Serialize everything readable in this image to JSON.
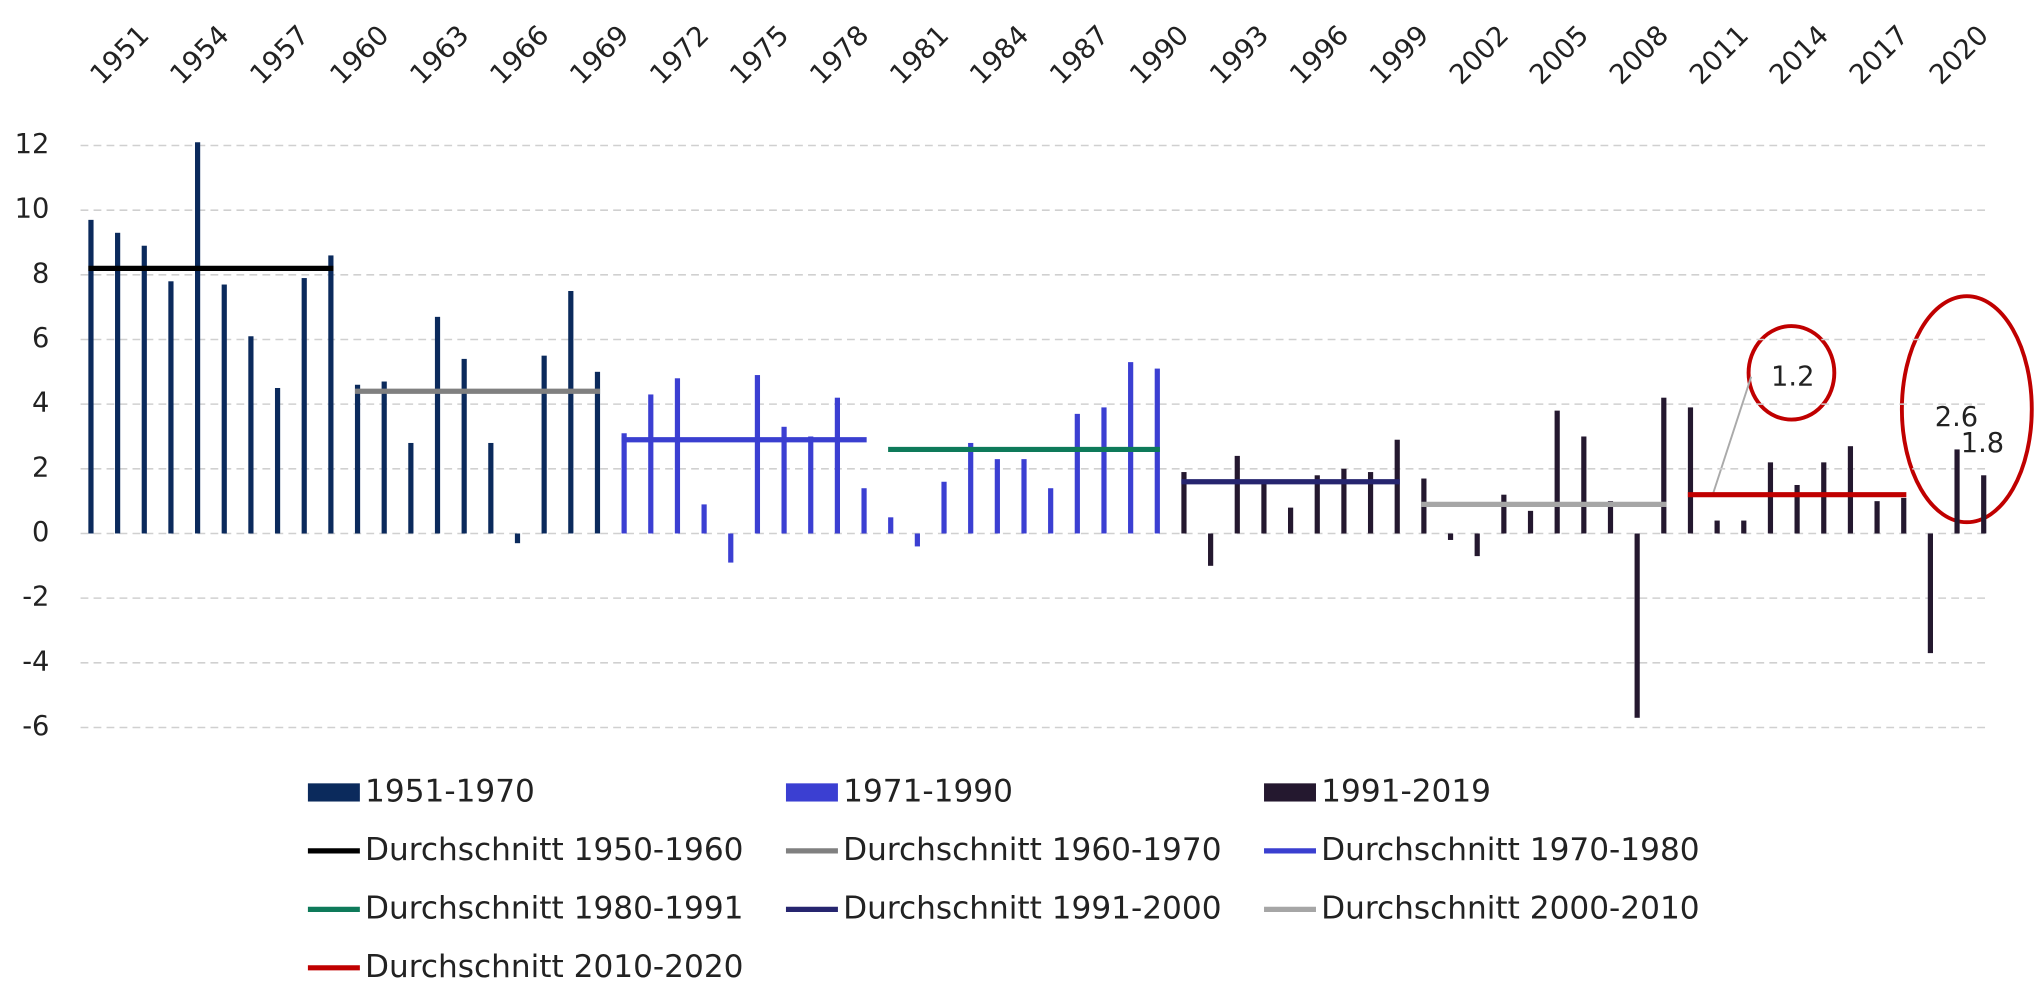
{
  "chart_data": {
    "type": "bar",
    "categories": [
      "1951",
      null,
      null,
      "1954",
      null,
      null,
      "1957",
      null,
      null,
      "1960",
      null,
      null,
      "1963",
      null,
      null,
      "1966",
      null,
      null,
      "1969",
      null,
      null,
      "1972",
      null,
      null,
      "1975",
      null,
      null,
      "1978",
      null,
      null,
      "1981",
      null,
      null,
      "1984",
      null,
      null,
      "1987",
      null,
      null,
      "1990",
      null,
      null,
      "1993",
      null,
      null,
      "1996",
      null,
      null,
      "1999",
      null,
      null,
      "2002",
      null,
      null,
      "2005",
      null,
      null,
      "2008",
      null,
      null,
      "2011",
      null,
      null,
      "2014",
      null,
      null,
      "2017",
      null,
      null,
      "2020",
      null,
      null
    ],
    "ylim": [
      -6,
      12
    ],
    "yticks": [
      -6,
      -4,
      -2,
      0,
      2,
      4,
      6,
      8,
      10,
      12
    ],
    "grid": true,
    "series": [
      {
        "name": "1951-1970",
        "color": "#0b2a5c",
        "values": [
          9.7,
          9.3,
          8.9,
          7.8,
          12.1,
          7.7,
          6.1,
          4.5,
          7.9,
          8.6,
          4.6,
          4.7,
          2.8,
          6.7,
          5.4,
          2.8,
          -0.3,
          5.5,
          7.5,
          5.0,
          null,
          null,
          null,
          null,
          null,
          null,
          null,
          null,
          null,
          null,
          null,
          null,
          null,
          null,
          null,
          null,
          null,
          null,
          null,
          null,
          null,
          null,
          null,
          null,
          null,
          null,
          null,
          null,
          null,
          null,
          null,
          null,
          null,
          null,
          null,
          null,
          null,
          null,
          null,
          null,
          null,
          null,
          null,
          null,
          null,
          null,
          null,
          null,
          null,
          null,
          null,
          null
        ]
      },
      {
        "name": "1971-1990",
        "color": "#3b3fd2",
        "values": [
          null,
          null,
          null,
          null,
          null,
          null,
          null,
          null,
          null,
          null,
          null,
          null,
          null,
          null,
          null,
          null,
          null,
          null,
          null,
          null,
          3.1,
          4.3,
          4.8,
          0.9,
          -0.9,
          4.9,
          3.3,
          3.0,
          4.2,
          1.4,
          0.5,
          -0.4,
          1.6,
          2.8,
          2.3,
          2.3,
          1.4,
          3.7,
          3.9,
          5.3,
          5.1,
          null,
          null,
          null,
          null,
          null,
          null,
          null,
          null,
          null,
          null,
          null,
          null,
          null,
          null,
          null,
          null,
          null,
          null,
          null,
          null,
          null,
          null,
          null,
          null,
          null,
          null,
          null,
          null,
          null,
          null,
          null
        ]
      },
      {
        "name": "1991-2019",
        "color": "#24182f",
        "values": [
          null,
          null,
          null,
          null,
          null,
          null,
          null,
          null,
          null,
          null,
          null,
          null,
          null,
          null,
          null,
          null,
          null,
          null,
          null,
          null,
          null,
          null,
          null,
          null,
          null,
          null,
          null,
          null,
          null,
          null,
          null,
          null,
          null,
          null,
          null,
          null,
          null,
          null,
          null,
          null,
          null,
          1.9,
          -1.0,
          2.4,
          1.6,
          0.8,
          1.8,
          2.0,
          1.9,
          2.9,
          1.7,
          -0.2,
          -0.7,
          1.2,
          0.7,
          3.8,
          3.0,
          1.0,
          -5.7,
          4.2,
          3.9,
          0.4,
          0.4,
          2.2,
          1.5,
          2.2,
          2.7,
          1.0,
          1.1,
          -3.7,
          2.6,
          1.8
        ]
      },
      {
        "name": "Durchschnitt 1950-1960",
        "type": "line",
        "color": "#000000",
        "values": [
          8.2,
          8.2,
          8.2,
          8.2,
          8.2,
          8.2,
          8.2,
          8.2,
          8.2,
          8.2,
          null,
          null,
          null,
          null,
          null,
          null,
          null,
          null,
          null,
          null,
          null,
          null,
          null,
          null,
          null,
          null,
          null,
          null,
          null,
          null,
          null,
          null,
          null,
          null,
          null,
          null,
          null,
          null,
          null,
          null,
          null,
          null,
          null,
          null,
          null,
          null,
          null,
          null,
          null,
          null,
          null,
          null,
          null,
          null,
          null,
          null,
          null,
          null,
          null,
          null,
          null,
          null,
          null,
          null,
          null,
          null,
          null,
          null,
          null,
          null,
          null,
          null
        ]
      },
      {
        "name": "Durchschnitt 1960-1970",
        "type": "line",
        "color": "#808080",
        "values": [
          null,
          null,
          null,
          null,
          null,
          null,
          null,
          null,
          null,
          null,
          4.4,
          4.4,
          4.4,
          4.4,
          4.4,
          4.4,
          4.4,
          4.4,
          4.4,
          4.4,
          null,
          null,
          null,
          null,
          null,
          null,
          null,
          null,
          null,
          null,
          null,
          null,
          null,
          null,
          null,
          null,
          null,
          null,
          null,
          null,
          null,
          null,
          null,
          null,
          null,
          null,
          null,
          null,
          null,
          null,
          null,
          null,
          null,
          null,
          null,
          null,
          null,
          null,
          null,
          null,
          null,
          null,
          null,
          null,
          null,
          null,
          null,
          null,
          null,
          null,
          null,
          null
        ]
      },
      {
        "name": "Durchschnitt 1970-1980",
        "type": "line",
        "color": "#3a3fd0",
        "values": [
          null,
          null,
          null,
          null,
          null,
          null,
          null,
          null,
          null,
          null,
          null,
          null,
          null,
          null,
          null,
          null,
          null,
          null,
          null,
          null,
          2.9,
          2.9,
          2.9,
          2.9,
          2.9,
          2.9,
          2.9,
          2.9,
          2.9,
          2.9,
          null,
          null,
          null,
          null,
          null,
          null,
          null,
          null,
          null,
          null,
          null,
          null,
          null,
          null,
          null,
          null,
          null,
          null,
          null,
          null,
          null,
          null,
          null,
          null,
          null,
          null,
          null,
          null,
          null,
          null,
          null,
          null,
          null,
          null,
          null,
          null,
          null,
          null,
          null,
          null,
          null,
          null
        ]
      },
      {
        "name": "Durchschnitt 1980-1991",
        "type": "line",
        "color": "#0e7a5a",
        "values": [
          null,
          null,
          null,
          null,
          null,
          null,
          null,
          null,
          null,
          null,
          null,
          null,
          null,
          null,
          null,
          null,
          null,
          null,
          null,
          null,
          null,
          null,
          null,
          null,
          null,
          null,
          null,
          null,
          null,
          null,
          2.6,
          2.6,
          2.6,
          2.6,
          2.6,
          2.6,
          2.6,
          2.6,
          2.6,
          2.6,
          2.6,
          null,
          null,
          null,
          null,
          null,
          null,
          null,
          null,
          null,
          null,
          null,
          null,
          null,
          null,
          null,
          null,
          null,
          null,
          null,
          null,
          null,
          null,
          null,
          null,
          null,
          null,
          null,
          null,
          null,
          null,
          null
        ]
      },
      {
        "name": "Durchschnitt 1991-2000",
        "type": "line",
        "color": "#26256f",
        "values": [
          null,
          null,
          null,
          null,
          null,
          null,
          null,
          null,
          null,
          null,
          null,
          null,
          null,
          null,
          null,
          null,
          null,
          null,
          null,
          null,
          null,
          null,
          null,
          null,
          null,
          null,
          null,
          null,
          null,
          null,
          null,
          null,
          null,
          null,
          null,
          null,
          null,
          null,
          null,
          null,
          null,
          1.6,
          1.6,
          1.6,
          1.6,
          1.6,
          1.6,
          1.6,
          1.6,
          1.6,
          null,
          null,
          null,
          null,
          null,
          null,
          null,
          null,
          null,
          null,
          null,
          null,
          null,
          null,
          null,
          null,
          null,
          null,
          null,
          null,
          null,
          null
        ]
      },
      {
        "name": "Durchschnitt 2000-2010",
        "type": "line",
        "color": "#a6a6a6",
        "values": [
          null,
          null,
          null,
          null,
          null,
          null,
          null,
          null,
          null,
          null,
          null,
          null,
          null,
          null,
          null,
          null,
          null,
          null,
          null,
          null,
          null,
          null,
          null,
          null,
          null,
          null,
          null,
          null,
          null,
          null,
          null,
          null,
          null,
          null,
          null,
          null,
          null,
          null,
          null,
          null,
          null,
          null,
          null,
          null,
          null,
          null,
          null,
          null,
          null,
          null,
          0.9,
          0.9,
          0.9,
          0.9,
          0.9,
          0.9,
          0.9,
          0.9,
          0.9,
          0.9,
          null,
          null,
          null,
          null,
          null,
          null,
          null,
          null,
          null,
          null,
          null,
          null
        ]
      },
      {
        "name": "Durchschnitt 2010-2020",
        "type": "line",
        "color": "#c00000",
        "values": [
          null,
          null,
          null,
          null,
          null,
          null,
          null,
          null,
          null,
          null,
          null,
          null,
          null,
          null,
          null,
          null,
          null,
          null,
          null,
          null,
          null,
          null,
          null,
          null,
          null,
          null,
          null,
          null,
          null,
          null,
          null,
          null,
          null,
          null,
          null,
          null,
          null,
          null,
          null,
          null,
          null,
          null,
          null,
          null,
          null,
          null,
          null,
          null,
          null,
          null,
          null,
          null,
          null,
          null,
          null,
          null,
          null,
          null,
          null,
          null,
          1.2,
          1.2,
          1.2,
          1.2,
          1.2,
          1.2,
          1.2,
          1.2,
          1.2,
          null,
          null,
          null
        ]
      }
    ]
  }
}
